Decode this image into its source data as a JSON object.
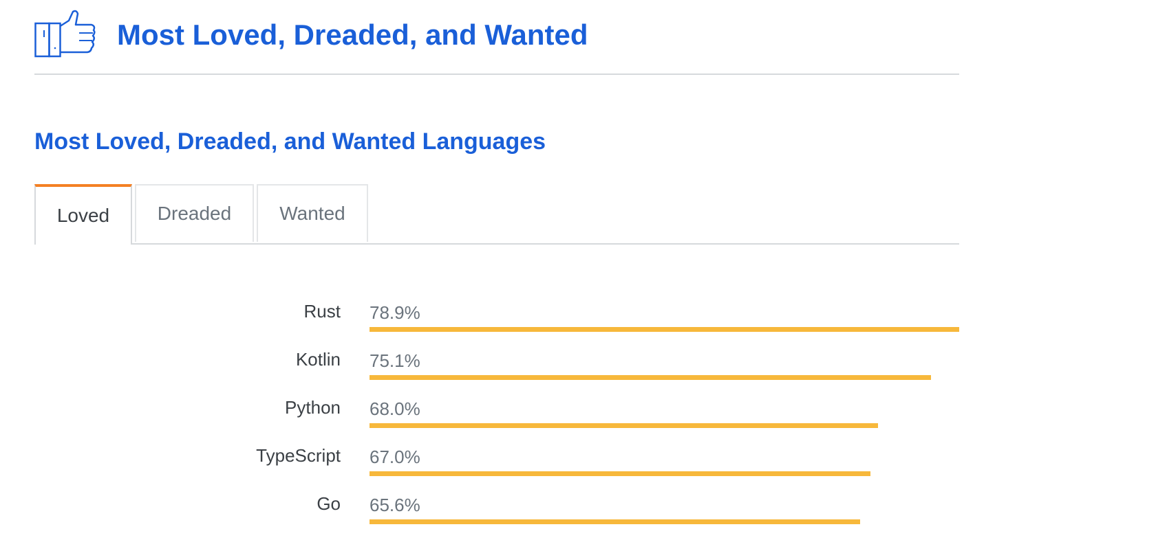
{
  "header": {
    "title": "Most Loved, Dreaded, and Wanted",
    "icon": "thumbs-up-icon"
  },
  "section": {
    "title": "Most Loved, Dreaded, and Wanted Languages"
  },
  "tabs": [
    {
      "label": "Loved",
      "active": true
    },
    {
      "label": "Dreaded",
      "active": false
    },
    {
      "label": "Wanted",
      "active": false
    }
  ],
  "colors": {
    "accent": "#1a5fd8",
    "tab_active": "#f48024",
    "bar": "#f7b83b"
  },
  "chart_data": {
    "type": "bar",
    "orientation": "horizontal",
    "categories": [
      "Rust",
      "Kotlin",
      "Python",
      "TypeScript",
      "Go"
    ],
    "values": [
      78.9,
      75.1,
      68.0,
      67.0,
      65.6
    ],
    "value_labels": [
      "78.9%",
      "75.1%",
      "68.0%",
      "67.0%",
      "65.6%"
    ],
    "xlim": [
      0,
      78.9
    ]
  }
}
